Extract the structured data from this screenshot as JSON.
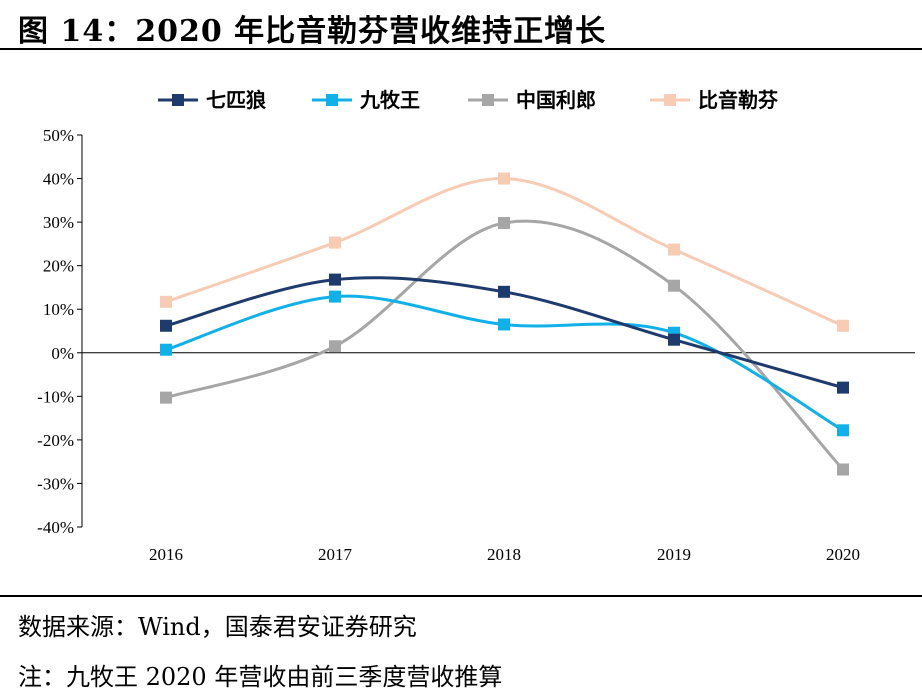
{
  "figure": {
    "title": "图 14：2020 年比音勒芬营收维持正增长",
    "source_note": "数据来源：Wind，国泰君安证券研究",
    "remark": "注：九牧王 2020 年营收由前三季度营收推算"
  },
  "chart_data": {
    "type": "line",
    "categories": [
      "2016",
      "2017",
      "2018",
      "2019",
      "2020"
    ],
    "ylim": [
      -40,
      50
    ],
    "yticks": [
      "-40%",
      "-30%",
      "-20%",
      "-10%",
      "0%",
      "10%",
      "20%",
      "30%",
      "40%",
      "50%"
    ],
    "ytick_values": [
      -40,
      -30,
      -20,
      -10,
      0,
      10,
      20,
      30,
      40,
      50
    ],
    "grid": false,
    "legend_position": "top",
    "series": [
      {
        "name": "七匹狼",
        "color": "#1f3b6e",
        "values": [
          6.2,
          16.8,
          14.0,
          3.0,
          -8.0
        ]
      },
      {
        "name": "九牧王",
        "color": "#12b0e8",
        "values": [
          0.7,
          12.9,
          6.5,
          4.6,
          -17.8
        ]
      },
      {
        "name": "中国利郎",
        "color": "#a6a6a6",
        "values": [
          -10.3,
          1.5,
          29.8,
          15.4,
          -26.8
        ]
      },
      {
        "name": "比音勒芬",
        "color": "#f7cbb4",
        "values": [
          11.7,
          25.3,
          40.0,
          23.7,
          6.2
        ]
      }
    ]
  }
}
